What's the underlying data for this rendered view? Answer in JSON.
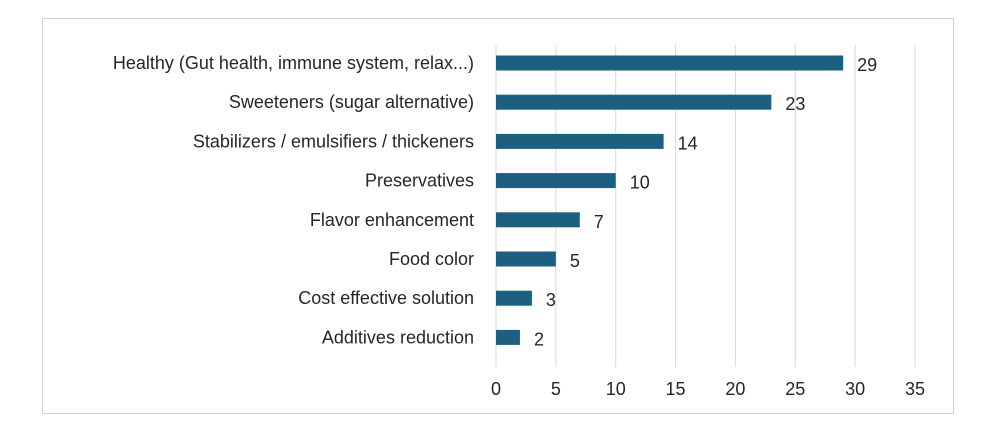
{
  "chart_data": {
    "type": "bar",
    "orientation": "horizontal",
    "title": "",
    "xlabel": "",
    "ylabel": "",
    "categories": [
      "Healthy (Gut health, immune system, relax...)",
      "Sweeteners (sugar alternative)",
      "Stabilizers / emulsifiers / thickeners",
      "Preservatives",
      "Flavor enhancement",
      "Food color",
      "Cost effective solution",
      "Additives reduction"
    ],
    "values": [
      29,
      23,
      14,
      10,
      7,
      5,
      3,
      2
    ],
    "xlim": [
      0,
      35
    ],
    "xticks": [
      0,
      5,
      10,
      15,
      20,
      25,
      30,
      35
    ],
    "grid": "vertical",
    "legend": "none",
    "bar_color": "#1c5f80",
    "gridline_color": "#d9d9d9",
    "data_labels": true
  }
}
